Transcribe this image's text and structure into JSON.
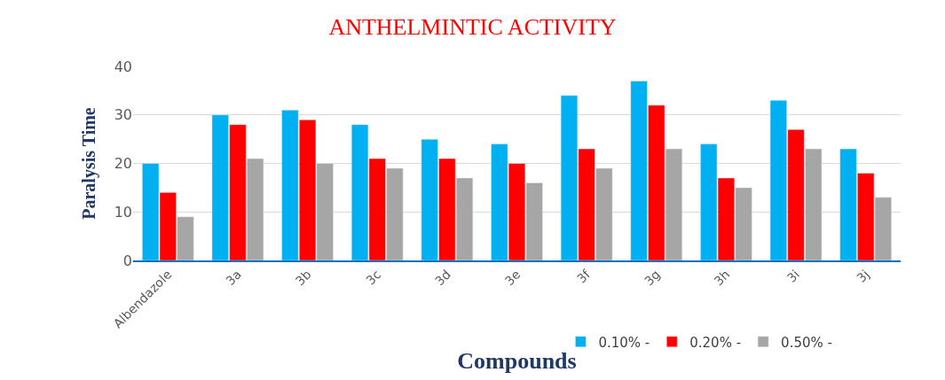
{
  "chart_data": {
    "type": "bar",
    "title": "ANTHELMINTIC ACTIVITY",
    "xlabel": "Compounds",
    "ylabel": "Paralysis Time",
    "categories": [
      "Albendazole",
      "3a",
      "3b",
      "3c",
      "3d",
      "3e",
      "3f",
      "3g",
      "3h",
      "3i",
      "3j"
    ],
    "series": [
      {
        "name": "0.10% -",
        "color": "#00b0f0",
        "values": [
          20,
          30,
          31,
          28,
          25,
          24,
          34,
          37,
          24,
          33,
          23
        ]
      },
      {
        "name": "0.20% -",
        "color": "#ff0000",
        "values": [
          14,
          28,
          29,
          21,
          21,
          20,
          23,
          32,
          17,
          27,
          18
        ]
      },
      {
        "name": "0.50% -",
        "color": "#a6a6a6",
        "values": [
          9,
          21,
          20,
          19,
          17,
          16,
          19,
          23,
          15,
          23,
          13
        ]
      }
    ],
    "ylim": [
      0,
      40
    ],
    "yticks": [
      0,
      10,
      20,
      30,
      40
    ],
    "grid": "y",
    "legend": "bottom"
  }
}
